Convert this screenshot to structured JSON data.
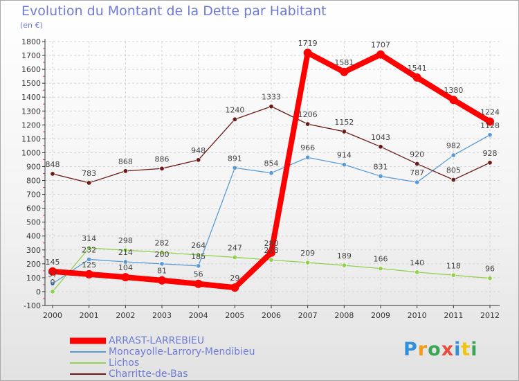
{
  "chart_data": {
    "type": "line",
    "title": "Evolution du Montant de la Dette par Habitant",
    "subtitle": "(en €)",
    "categories": [
      "2000",
      "2001",
      "2002",
      "2003",
      "2004",
      "2005",
      "2006",
      "2007",
      "2008",
      "2009",
      "2010",
      "2011",
      "2012"
    ],
    "ylim": [
      -100,
      1800
    ],
    "yticks": [
      "-100",
      "0",
      "100",
      "200",
      "300",
      "400",
      "500",
      "600",
      "700",
      "800",
      "900",
      "1000",
      "1100",
      "1200",
      "1300",
      "1400",
      "1500",
      "1600",
      "1700",
      "1800"
    ],
    "grid": true,
    "legend_position": "bottom-left",
    "series": [
      {
        "name": "ARRAST-LARREBIEU",
        "color": "#ff0000",
        "values": [
          145,
          125,
          104,
          81,
          56,
          29,
          280,
          1719,
          1581,
          1707,
          1541,
          1380,
          1224
        ],
        "labels": [
          "145",
          "125",
          "104",
          "81",
          "56",
          "29",
          "280",
          "1719",
          "1581",
          "1707",
          "1541",
          "1380",
          "1224"
        ]
      },
      {
        "name": "Moncayolle-Larrory-Mendibieu",
        "color": "#5b9bd5",
        "values": [
          57,
          232,
          214,
          200,
          185,
          891,
          854,
          966,
          914,
          831,
          787,
          982,
          1128
        ],
        "labels": [
          "57",
          "232",
          "214",
          "200",
          "185",
          "891",
          "854",
          "966",
          "914",
          "831",
          "787",
          "982",
          "1128"
        ]
      },
      {
        "name": "Lichos",
        "color": "#92d050",
        "values": [
          0,
          314,
          298,
          282,
          264,
          247,
          228,
          209,
          189,
          166,
          140,
          118,
          96
        ],
        "labels": [
          "0",
          "314",
          "298",
          "282",
          "264",
          "247",
          "228",
          "209",
          "189",
          "166",
          "140",
          "118",
          "96"
        ]
      },
      {
        "name": "Charritte-de-Bas",
        "color": "#6b1a1a",
        "values": [
          848,
          783,
          868,
          886,
          948,
          1240,
          1333,
          1206,
          1152,
          1043,
          920,
          805,
          928
        ],
        "labels": [
          "848",
          "783",
          "868",
          "886",
          "948",
          "1240",
          "1333",
          "1206",
          "1152",
          "1043",
          "920",
          "805",
          "928"
        ]
      }
    ]
  },
  "logo": {
    "text": "Proxiti"
  }
}
